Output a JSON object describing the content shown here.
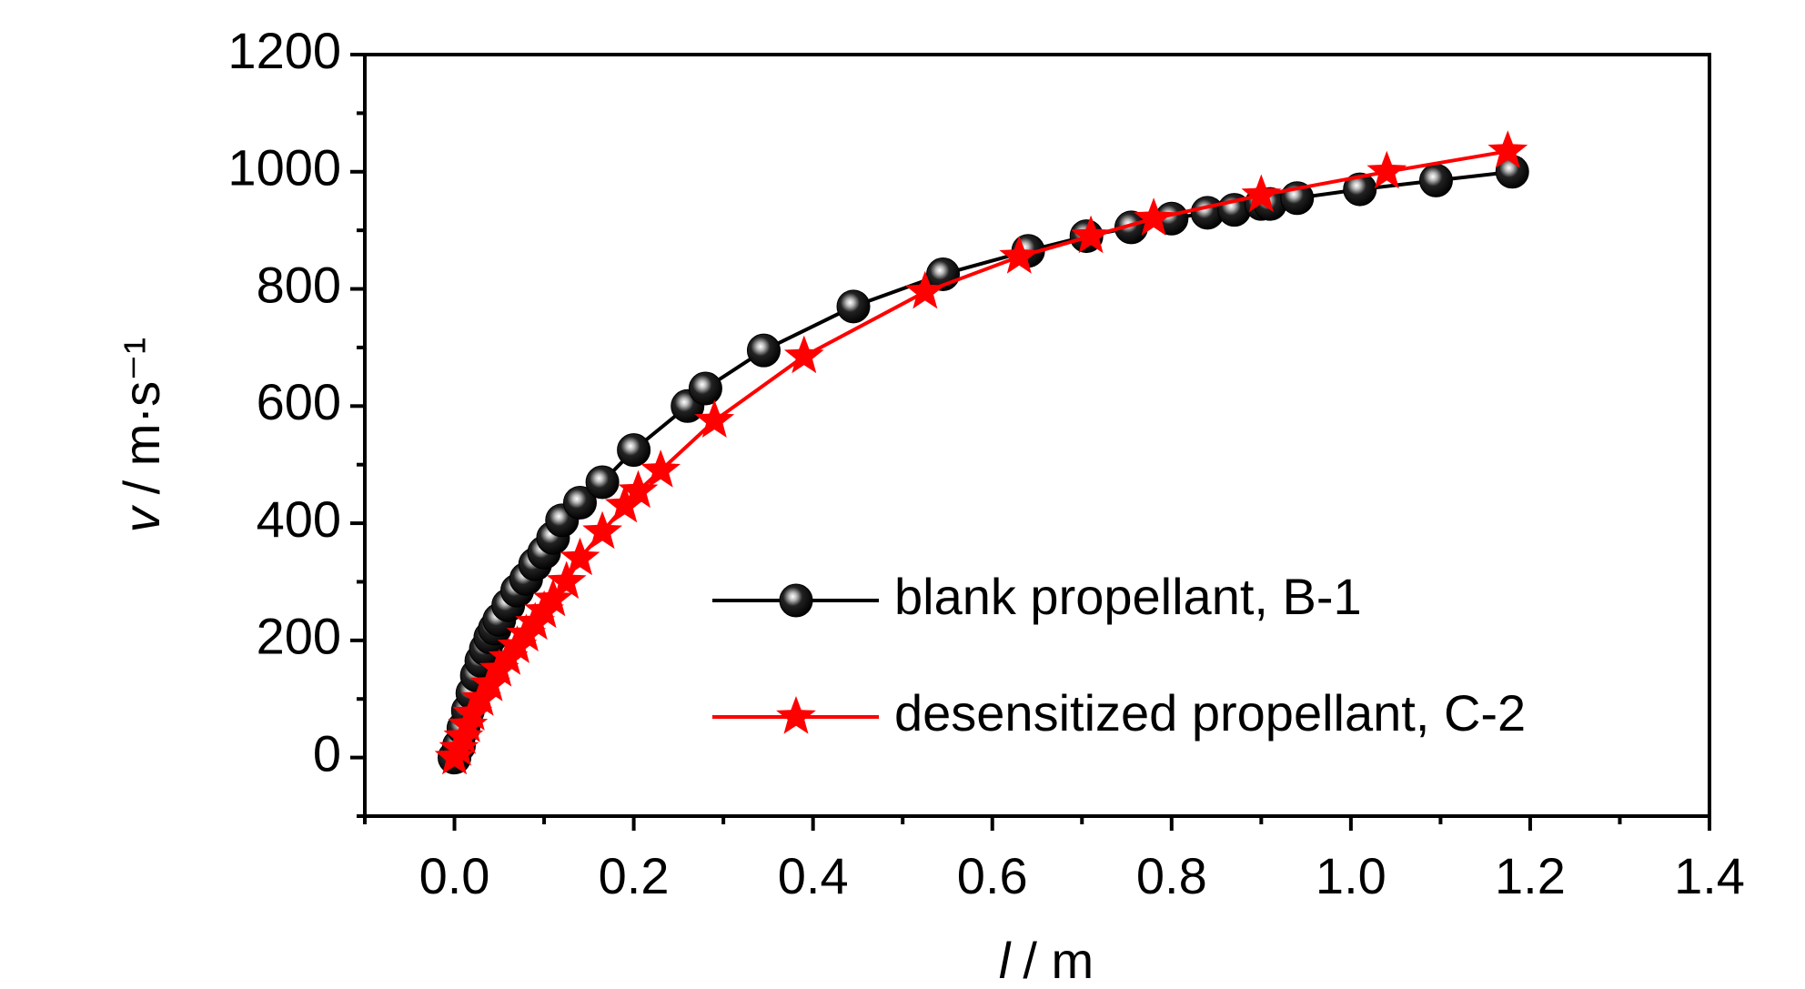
{
  "chart_data": {
    "type": "scatter-line",
    "xlabel": {
      "symbol": "l",
      "unit": "/ m"
    },
    "ylabel": {
      "symbol": "v",
      "unit": "/ m·s⁻¹"
    },
    "xlim": [
      -0.1,
      1.4
    ],
    "xticks": [
      {
        "value": 0,
        "label": "0.0"
      },
      0.2,
      0.4,
      0.6,
      0.8,
      {
        "value": 1,
        "label": "1.0"
      },
      1.2,
      1.4
    ],
    "ylim": [
      -100,
      1200
    ],
    "yticks": [
      0,
      200,
      400,
      600,
      800,
      1000,
      1200
    ],
    "legend": "lower right",
    "series": [
      {
        "name": "blank propellant, B-1",
        "color": "#000000",
        "marker": "sphere",
        "x": [
          0,
          0.005,
          0.01,
          0.015,
          0.02,
          0.025,
          0.03,
          0.035,
          0.04,
          0.045,
          0.05,
          0.06,
          0.07,
          0.08,
          0.09,
          0.1,
          0.11,
          0.12,
          0.14,
          0.165,
          0.2,
          0.26,
          0.28,
          0.345,
          0.445,
          0.545,
          0.64,
          0.705,
          0.755,
          0.8,
          0.84,
          0.87,
          0.9,
          0.91,
          0.94,
          1.01,
          1.095,
          1.18
        ],
        "values": [
          0,
          20,
          50,
          80,
          110,
          140,
          165,
          185,
          205,
          220,
          235,
          260,
          285,
          305,
          330,
          350,
          375,
          405,
          435,
          470,
          525,
          600,
          630,
          695,
          770,
          825,
          865,
          890,
          905,
          920,
          930,
          935,
          945,
          945,
          955,
          970,
          985,
          1000
        ]
      },
      {
        "name": "desensitized propellant, C-2",
        "color": "#ff0000",
        "marker": "star",
        "x": [
          0,
          0.005,
          0.01,
          0.015,
          0.02,
          0.03,
          0.04,
          0.05,
          0.06,
          0.07,
          0.08,
          0.09,
          0.1,
          0.11,
          0.125,
          0.14,
          0.165,
          0.19,
          0.205,
          0.23,
          0.29,
          0.39,
          0.525,
          0.63,
          0.71,
          0.78,
          0.9,
          1.04,
          1.175
        ],
        "values": [
          0,
          15,
          35,
          55,
          75,
          100,
          125,
          150,
          170,
          190,
          210,
          230,
          250,
          270,
          300,
          340,
          385,
          430,
          455,
          490,
          575,
          685,
          795,
          855,
          890,
          920,
          960,
          1000,
          1035
        ]
      }
    ]
  }
}
